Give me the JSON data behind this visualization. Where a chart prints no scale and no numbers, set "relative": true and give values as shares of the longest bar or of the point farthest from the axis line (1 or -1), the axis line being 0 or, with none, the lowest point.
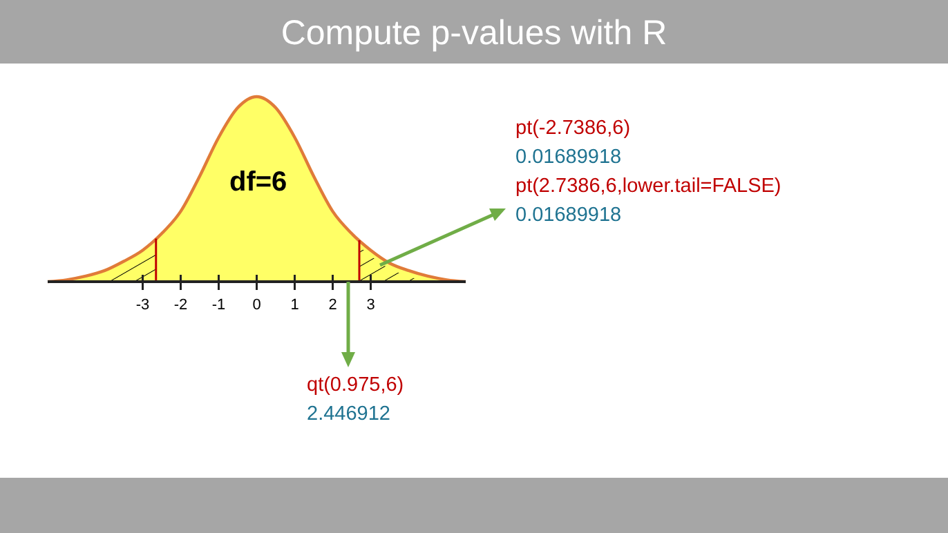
{
  "chart_data": {
    "type": "area",
    "title": "Compute p-values with R",
    "relative": true,
    "tick_labels": "x",
    "grid": false,
    "x": [
      -5.5,
      -5,
      -4.5,
      -4,
      -3.5,
      -3,
      -2.5,
      -2,
      -1.5,
      -1,
      -0.5,
      0,
      0.5,
      1,
      1.5,
      2,
      2.5,
      3,
      3.5,
      4,
      4.5,
      5,
      5.5
    ],
    "series": [
      {
        "color": "#ffff66",
        "values": [
          0,
          0.01,
          0.03,
          0.06,
          0.11,
          0.17,
          0.26,
          0.38,
          0.57,
          0.78,
          0.94,
          1,
          0.94,
          0.78,
          0.57,
          0.38,
          0.26,
          0.17,
          0.1,
          0.06,
          0.03,
          0.01,
          0
        ]
      }
    ],
    "xlim": [
      -5.5,
      5.5
    ],
    "xticks": [
      -3,
      -2,
      -1,
      0,
      1,
      2,
      3
    ],
    "ref_lines": [
      {
        "axis": "x",
        "value": -2.65,
        "color": "#c00000"
      },
      {
        "axis": "x",
        "value": 2.7,
        "color": "#c00000"
      }
    ],
    "bands": [
      {
        "axis": "x",
        "from": -5.5,
        "to": -2.65
      },
      {
        "axis": "x",
        "from": 2.7,
        "to": 5.5
      }
    ],
    "annotations": [
      "df=6",
      "pt(-2.7386,6)",
      "0.01689918",
      "pt(2.7386,6,lower.tail=FALSE)",
      "0.01689918",
      "qt(0.975,6)",
      "2.446912"
    ]
  }
}
